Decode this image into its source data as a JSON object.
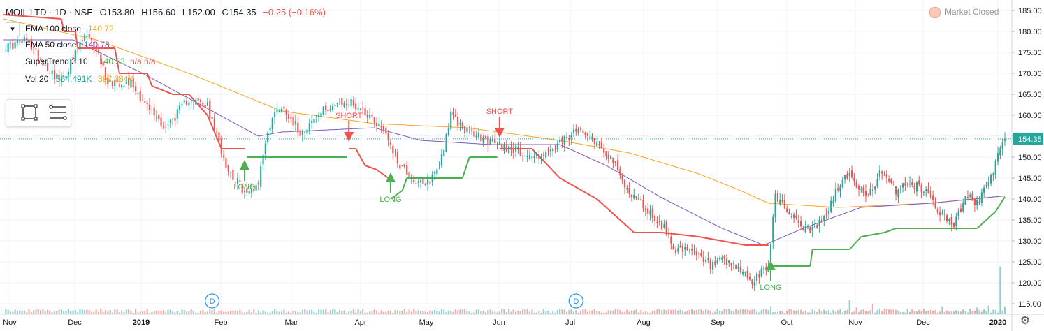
{
  "header": {
    "symbol": "MOIL LTD · 1D · NSE",
    "open": "O153.80",
    "high": "H156.60",
    "low": "L152.00",
    "close": "C154.35",
    "change": "−0.25 (−0.16%)",
    "change_color": "#ef5350"
  },
  "market_status": "Market Closed",
  "legend": [
    {
      "label": "EMA 100 close",
      "value": "140.72",
      "color": "#f5a623"
    },
    {
      "label": "EMA 50 close",
      "value": "140.78",
      "color": "#7e57c2"
    },
    {
      "label": "SuperTrend 3 10",
      "value": "140.53",
      "extra": "n/a n/a",
      "color": "#4caf50"
    },
    {
      "label": "Vol 20",
      "value": "564.491K",
      "extra": "397.284K",
      "color": "#26a69a"
    }
  ],
  "legend_collapse_icon": "chevron-up-icon",
  "toolbar_icons": [
    "rectangle-icon",
    "lines-icon"
  ],
  "settings_icon": "gear-icon",
  "colors": {
    "up": "#26a69a",
    "down": "#ef5350",
    "ema100": "#f5a623",
    "ema50": "#7e57c2",
    "st_up": "#4caf50",
    "st_down": "#ef5350",
    "vol_up": "#93cfc8",
    "vol_down": "#f7a9a7"
  },
  "chart_data": {
    "type": "candlestick",
    "symbol": "MOIL LTD",
    "interval": "1D",
    "exchange": "NSE",
    "ylim": [
      112.5,
      187.5
    ],
    "y_ticks": [
      115.0,
      120.0,
      125.0,
      130.0,
      135.0,
      140.0,
      145.0,
      150.0,
      155.0,
      160.0,
      165.0,
      170.0,
      175.0,
      180.0,
      185.0
    ],
    "x_ticks": [
      "Nov",
      "Dec",
      "2019",
      "Feb",
      "Mar",
      "Apr",
      "May",
      "Jun",
      "Jul",
      "Aug",
      "Sep",
      "Oct",
      "Nov",
      "Dec",
      "2020"
    ],
    "last_price": 154.35,
    "last_price_label": "154.35",
    "series_anchors": {
      "close": [
        [
          0,
          176
        ],
        [
          10,
          178
        ],
        [
          18,
          172
        ],
        [
          25,
          168
        ],
        [
          35,
          179
        ],
        [
          40,
          176
        ],
        [
          45,
          168
        ],
        [
          55,
          168
        ],
        [
          62,
          162
        ],
        [
          70,
          157
        ],
        [
          80,
          164
        ],
        [
          88,
          162
        ],
        [
          92,
          155
        ],
        [
          97,
          147
        ],
        [
          105,
          141
        ],
        [
          110,
          144
        ],
        [
          113,
          154
        ],
        [
          118,
          162
        ],
        [
          122,
          161
        ],
        [
          128,
          156
        ],
        [
          140,
          162
        ],
        [
          150,
          163
        ],
        [
          158,
          160
        ],
        [
          165,
          156
        ],
        [
          170,
          149
        ],
        [
          178,
          144
        ],
        [
          182,
          143
        ],
        [
          188,
          148
        ],
        [
          193,
          160
        ],
        [
          198,
          157
        ],
        [
          208,
          154
        ],
        [
          220,
          152
        ],
        [
          228,
          150
        ],
        [
          235,
          151
        ],
        [
          242,
          154
        ],
        [
          250,
          157
        ],
        [
          255,
          154
        ],
        [
          262,
          150
        ],
        [
          268,
          143
        ],
        [
          275,
          139
        ],
        [
          285,
          133
        ],
        [
          290,
          128
        ],
        [
          298,
          127
        ],
        [
          305,
          124
        ],
        [
          310,
          125
        ],
        [
          318,
          123
        ],
        [
          323,
          120
        ],
        [
          330,
          124
        ],
        [
          333,
          141
        ],
        [
          340,
          136
        ],
        [
          348,
          132
        ],
        [
          355,
          136
        ],
        [
          360,
          143
        ],
        [
          365,
          146
        ],
        [
          372,
          140
        ],
        [
          378,
          146
        ],
        [
          385,
          142
        ],
        [
          390,
          144
        ],
        [
          398,
          142
        ],
        [
          405,
          136
        ],
        [
          410,
          134
        ],
        [
          416,
          141
        ],
        [
          420,
          139
        ],
        [
          426,
          145
        ],
        [
          430,
          152
        ],
        [
          432,
          154.35
        ]
      ],
      "ema100": [
        [
          0,
          183
        ],
        [
          40,
          178
        ],
        [
          80,
          170
        ],
        [
          120,
          161
        ],
        [
          160,
          158
        ],
        [
          200,
          157
        ],
        [
          240,
          154
        ],
        [
          270,
          151
        ],
        [
          300,
          146
        ],
        [
          318,
          142
        ],
        [
          330,
          139
        ],
        [
          360,
          138
        ],
        [
          400,
          139
        ],
        [
          432,
          140.72
        ]
      ],
      "ema50": [
        [
          0,
          178
        ],
        [
          30,
          178
        ],
        [
          60,
          170
        ],
        [
          90,
          161
        ],
        [
          110,
          155
        ],
        [
          120,
          156
        ],
        [
          160,
          157
        ],
        [
          180,
          154
        ],
        [
          210,
          153
        ],
        [
          240,
          153
        ],
        [
          260,
          148
        ],
        [
          285,
          140
        ],
        [
          310,
          133
        ],
        [
          328,
          129
        ],
        [
          345,
          133
        ],
        [
          370,
          138
        ],
        [
          400,
          139
        ],
        [
          432,
          140.78
        ]
      ],
      "supertrend": [
        [
          0,
          184,
          "down"
        ],
        [
          25,
          183,
          "down"
        ],
        [
          26,
          180,
          "down"
        ],
        [
          31,
          180,
          "down"
        ],
        [
          32,
          176,
          "down"
        ],
        [
          48,
          176,
          "down"
        ],
        [
          50,
          170,
          "down"
        ],
        [
          62,
          170,
          "down"
        ],
        [
          64,
          167,
          "down"
        ],
        [
          73,
          165,
          "down"
        ],
        [
          80,
          165,
          "down"
        ],
        [
          88,
          160,
          "down"
        ],
        [
          94,
          152,
          "down"
        ],
        [
          104,
          152,
          "down"
        ],
        [
          105,
          150,
          "up"
        ],
        [
          148,
          150,
          "up"
        ],
        [
          149,
          152,
          "down"
        ],
        [
          152,
          152,
          "down"
        ],
        [
          156,
          148,
          "down"
        ],
        [
          161,
          147,
          "down"
        ],
        [
          166,
          145,
          "down"
        ],
        [
          167,
          140,
          "up"
        ],
        [
          172,
          142,
          "up"
        ],
        [
          174,
          145,
          "up"
        ],
        [
          198,
          145,
          "up"
        ],
        [
          201,
          150,
          "up"
        ],
        [
          213,
          150,
          "up"
        ],
        [
          214,
          152,
          "down"
        ],
        [
          228,
          152,
          "down"
        ],
        [
          240,
          145,
          "down"
        ],
        [
          256,
          140,
          "down"
        ],
        [
          272,
          132,
          "down"
        ],
        [
          284,
          132,
          "down"
        ],
        [
          300,
          131,
          "down"
        ],
        [
          320,
          129,
          "down"
        ],
        [
          330,
          129,
          "down"
        ],
        [
          331,
          124,
          "up"
        ],
        [
          348,
          124,
          "up"
        ],
        [
          349,
          128,
          "up"
        ],
        [
          365,
          128,
          "up"
        ],
        [
          370,
          131,
          "up"
        ],
        [
          380,
          132,
          "up"
        ],
        [
          385,
          133,
          "up"
        ],
        [
          420,
          133,
          "up"
        ],
        [
          428,
          137,
          "up"
        ],
        [
          432,
          140.53,
          "up"
        ]
      ],
      "volume_spikes": [
        [
          331,
          2.9
        ],
        [
          365,
          5
        ],
        [
          368,
          2.4
        ],
        [
          375,
          3.8
        ],
        [
          380,
          2
        ],
        [
          385,
          1.6
        ],
        [
          405,
          2.8
        ],
        [
          420,
          2.4
        ],
        [
          425,
          3.1
        ],
        [
          430,
          17
        ],
        [
          432,
          2.8
        ]
      ]
    },
    "signals": [
      {
        "type": "LONG",
        "bar": 104,
        "price": 148,
        "label": "LONG"
      },
      {
        "type": "SHORT",
        "bar": 149,
        "price": 155,
        "label": "SHORT"
      },
      {
        "type": "LONG",
        "bar": 167,
        "price": 145,
        "label": "LONG"
      },
      {
        "type": "SHORT",
        "bar": 214,
        "price": 156,
        "label": "SHORT"
      },
      {
        "type": "LONG",
        "bar": 331,
        "price": 124,
        "label": "LONG"
      }
    ],
    "dividends": [
      {
        "bar": 90,
        "label": "D"
      },
      {
        "bar": 247,
        "label": "D"
      }
    ]
  }
}
